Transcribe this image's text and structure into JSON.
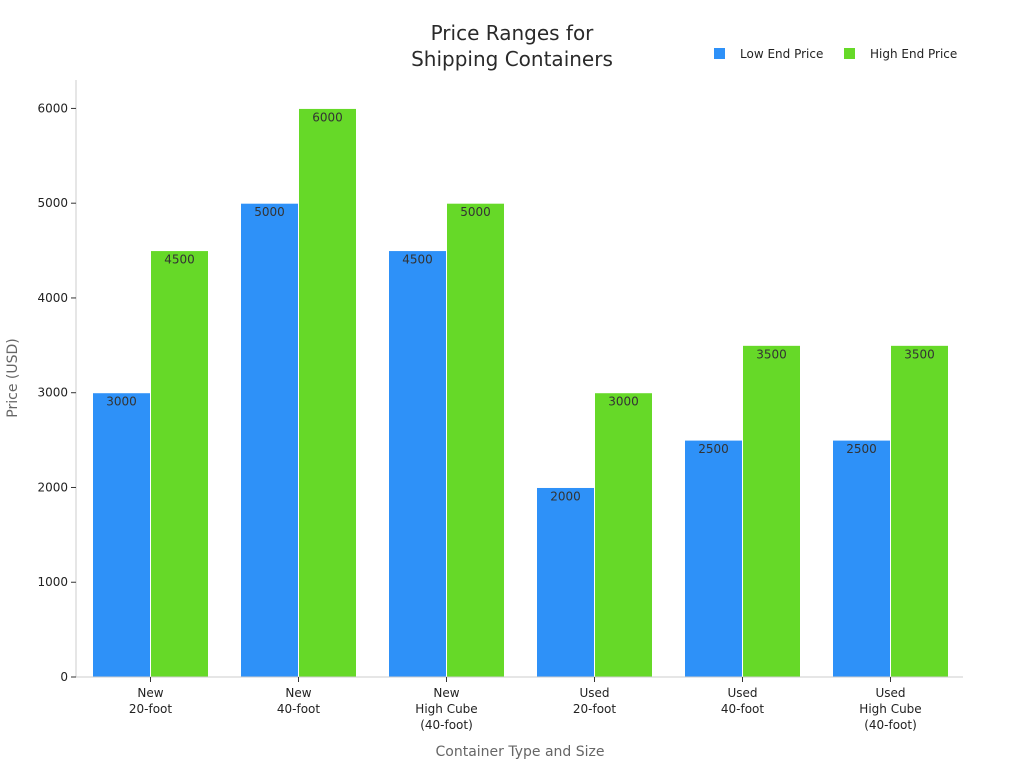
{
  "chart_data": {
    "type": "bar",
    "title": [
      "Price Ranges for",
      "Shipping Containers"
    ],
    "xlabel": "Container Type and Size",
    "ylabel": "Price (USD)",
    "ylim": [
      0,
      6300
    ],
    "yticks": [
      0,
      1000,
      2000,
      3000,
      4000,
      5000,
      6000
    ],
    "grid": false,
    "legend_position": "top-right",
    "categories": [
      [
        "New",
        "20-foot"
      ],
      [
        "New",
        "40-foot"
      ],
      [
        "New",
        "High Cube",
        "(40-foot)"
      ],
      [
        "Used",
        "20-foot"
      ],
      [
        "Used",
        "40-foot"
      ],
      [
        "Used",
        "High Cube",
        "(40-foot)"
      ]
    ],
    "series": [
      {
        "name": "Low End Price",
        "color": "#2e91f8",
        "values": [
          3000,
          5000,
          4500,
          2000,
          2500,
          2500
        ]
      },
      {
        "name": "High End Price",
        "color": "#66d928",
        "values": [
          4500,
          6000,
          5000,
          3000,
          3500,
          3500
        ]
      }
    ]
  }
}
